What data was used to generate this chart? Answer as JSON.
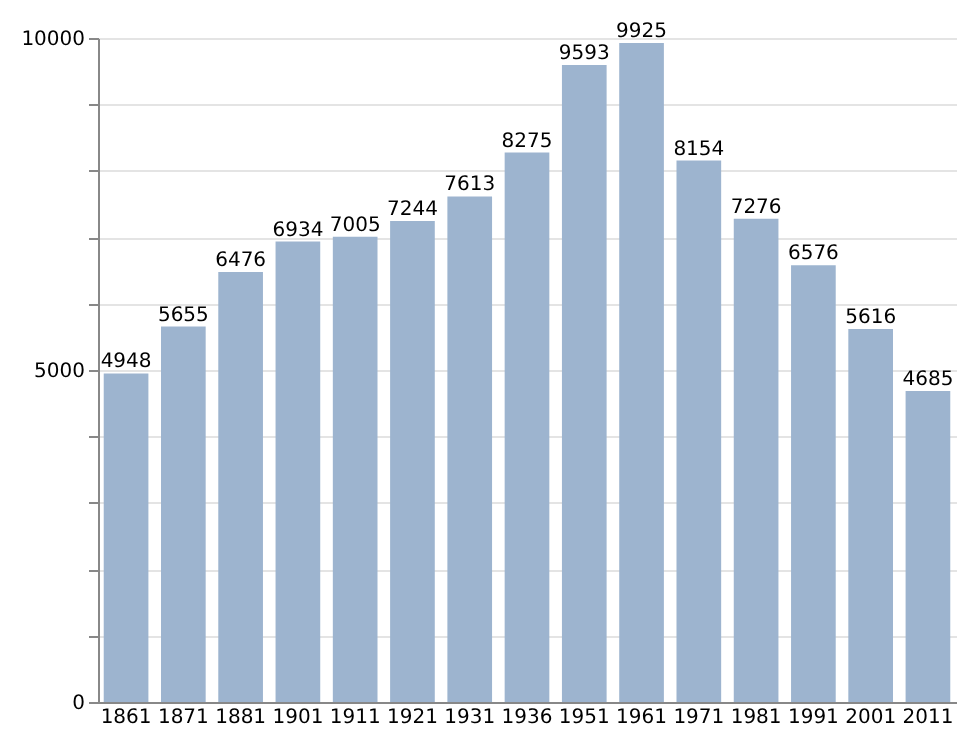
{
  "chart_data": {
    "type": "bar",
    "categories": [
      "1861",
      "1871",
      "1881",
      "1901",
      "1911",
      "1921",
      "1931",
      "1936",
      "1951",
      "1961",
      "1971",
      "1981",
      "1991",
      "2001",
      "2011"
    ],
    "values": [
      4948,
      5655,
      6476,
      6934,
      7005,
      7244,
      7613,
      8275,
      9593,
      9925,
      8154,
      7276,
      6576,
      5616,
      4685
    ],
    "color": "#9db4cf",
    "ylim": [
      0,
      10000
    ],
    "yticks": [
      0,
      {
        "value": 1000,
        "label": null
      },
      {
        "value": 2000,
        "label": null
      },
      {
        "value": 3000,
        "label": null
      },
      {
        "value": 4000,
        "label": null
      },
      5000,
      {
        "value": 6000,
        "label": null
      },
      {
        "value": 7000,
        "label": null
      },
      {
        "value": 8000,
        "label": null
      },
      {
        "value": 9000,
        "label": null
      },
      10000
    ],
    "grid": "y",
    "data_labels": true
  }
}
